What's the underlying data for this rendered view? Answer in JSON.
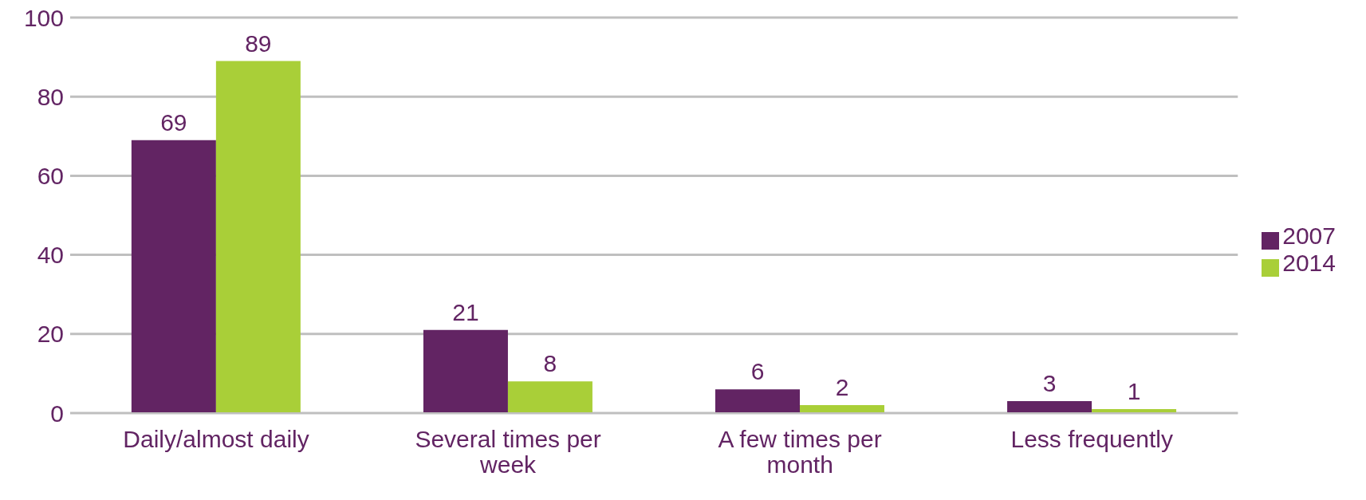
{
  "chart_data": {
    "type": "bar",
    "categories": [
      "Daily/almost daily",
      "Several times per week",
      "A few times per month",
      "Less frequently"
    ],
    "series": [
      {
        "name": "2007",
        "color": "#622463",
        "values": [
          69,
          21,
          6,
          3
        ]
      },
      {
        "name": "2014",
        "color": "#a9cf38",
        "values": [
          89,
          8,
          2,
          1
        ]
      }
    ],
    "ylim": [
      0,
      100
    ],
    "yticks": [
      0,
      20,
      40,
      60,
      80,
      100
    ],
    "grid": "y",
    "legend": "right",
    "data_labels": true
  }
}
